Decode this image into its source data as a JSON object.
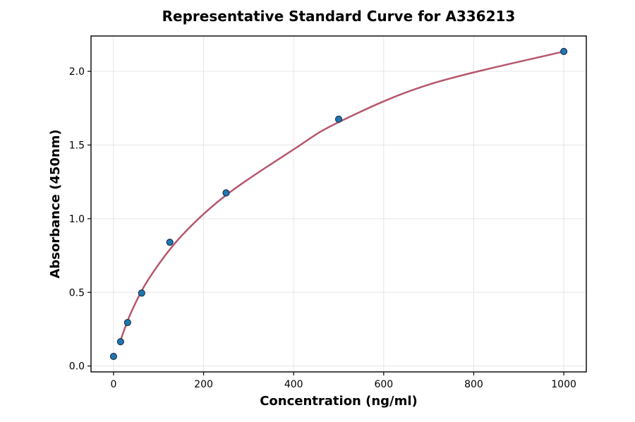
{
  "chart_data": {
    "type": "scatter",
    "title": "Representative Standard Curve for A336213",
    "xlabel": "Concentration (ng/ml)",
    "ylabel": "Absorbance (450nm)",
    "xlim": [
      -50,
      1050
    ],
    "ylim": [
      -0.04,
      2.24
    ],
    "x_ticks": [
      0,
      200,
      400,
      600,
      800,
      1000
    ],
    "x_tick_labels": [
      "0",
      "200",
      "400",
      "600",
      "800",
      "1000"
    ],
    "y_ticks": [
      0.0,
      0.5,
      1.0,
      1.5,
      2.0
    ],
    "y_tick_labels": [
      "0.0",
      "0.5",
      "1.0",
      "1.5",
      "2.0"
    ],
    "grid": true,
    "legend": "none",
    "series": [
      {
        "kind": "points",
        "x": [
          0,
          15.6,
          31.25,
          62.5,
          125,
          250,
          500,
          1000
        ],
        "y": [
          0.065,
          0.165,
          0.295,
          0.495,
          0.84,
          1.175,
          1.675,
          2.135
        ],
        "color": "#1f77b4",
        "edge_color": "#1a2a40"
      },
      {
        "kind": "fit-curve",
        "x": [
          15.6,
          40,
          80,
          150,
          250,
          400,
          500,
          700,
          1000
        ],
        "y": [
          0.175,
          0.37,
          0.6,
          0.88,
          1.16,
          1.47,
          1.655,
          1.91,
          2.135
        ],
        "color": "#b5576b"
      }
    ]
  }
}
